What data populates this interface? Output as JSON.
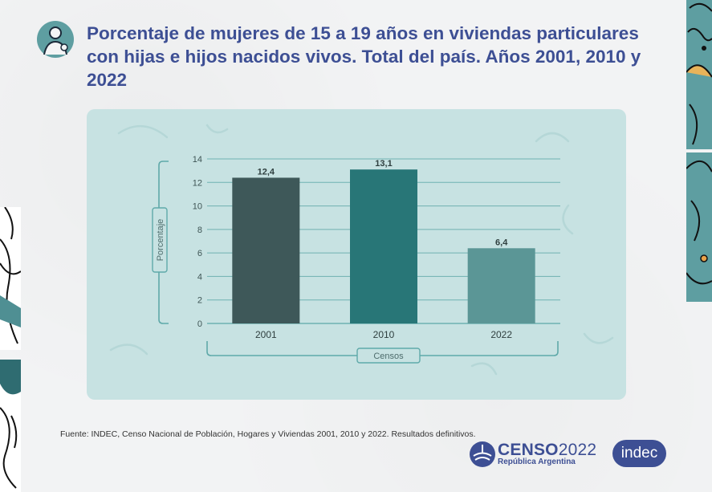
{
  "title": "Porcentaje de mujeres de 15 a 19 años en viviendas particulares con hijas e hijos nacidos vivos. Total del país. Años 2001, 2010 y 2022",
  "source": "Fuente: INDEC, Censo Nacional de Población, Hogares y Viviendas 2001, 2010 y 2022. Resultados definitivos.",
  "logos": {
    "censo_brand": "CENSO",
    "censo_year": "2022",
    "censo_sub": "República Argentina",
    "indec": "indec"
  },
  "colors": {
    "title": "#3d4f94",
    "panel": "#c7e2e2",
    "axis": "#5fa9a9"
  },
  "chart_data": {
    "type": "bar",
    "categories": [
      "2001",
      "2010",
      "2022"
    ],
    "values": [
      12.4,
      13.1,
      6.4
    ],
    "value_labels": [
      "12,4",
      "13,1",
      "6,4"
    ],
    "bar_colors": [
      "#3e5859",
      "#287677",
      "#5b9696"
    ],
    "ylabel": "Porcentaje",
    "xlabel": "Censos",
    "ylim": [
      0,
      14
    ],
    "yticks": [
      0,
      2,
      4,
      6,
      8,
      10,
      12,
      14
    ],
    "grid": true
  }
}
